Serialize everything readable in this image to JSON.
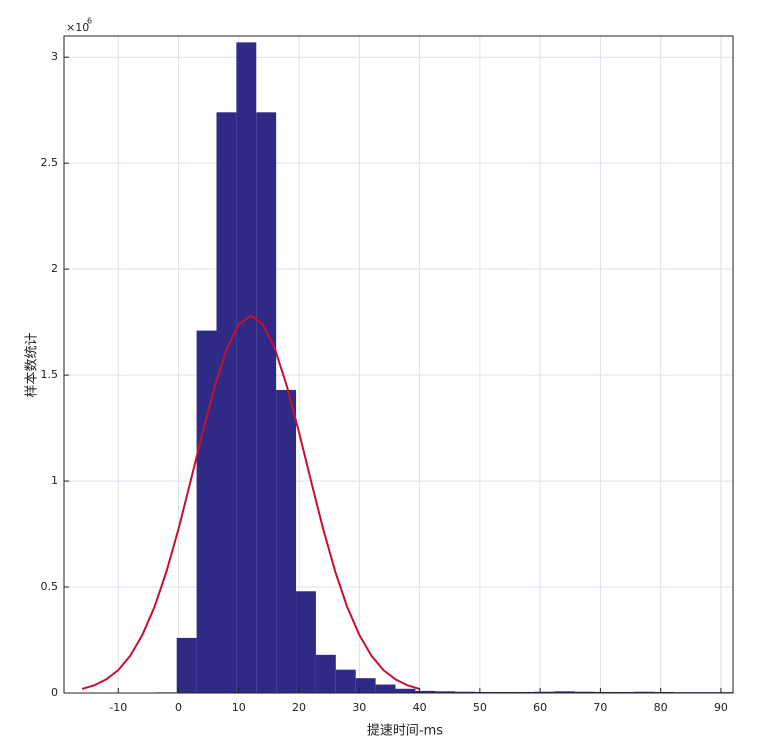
{
  "chart_data": {
    "type": "histogram",
    "xlabel": "提速时间-ms",
    "ylabel": "样本数统计",
    "y_scale_base": "×10",
    "y_scale_exponent": "6",
    "bins": [
      -3.6,
      -0.3,
      3.0,
      6.3,
      9.6,
      12.9,
      16.2,
      19.5,
      22.8,
      26.1,
      29.4,
      32.7,
      36.0,
      39.3,
      42.6,
      45.9,
      49.2,
      52.5,
      55.8,
      59.1,
      62.4,
      65.7,
      69.0,
      72.3,
      75.6,
      78.9,
      82.2,
      85.5,
      88.8,
      92.1
    ],
    "values": [
      0.003,
      0.26,
      1.71,
      2.74,
      3.07,
      2.74,
      1.43,
      0.48,
      0.18,
      0.11,
      0.07,
      0.04,
      0.02,
      0.01,
      0.008,
      0.006,
      0.005,
      0.005,
      0.005,
      0.006,
      0.008,
      0.006,
      0.005,
      0.005,
      0.006,
      0.005,
      0.004,
      0.004,
      0.004
    ],
    "color": "#2e2a85",
    "curve": {
      "color": "#c8102e",
      "x": [
        -16,
        -14,
        -12,
        -10,
        -8,
        -6,
        -4,
        -2,
        0,
        2,
        4,
        6,
        8,
        10,
        12,
        14,
        16,
        18,
        20,
        22,
        24,
        26,
        28,
        30,
        32,
        34,
        36,
        38,
        40
      ],
      "values": [
        0.019,
        0.036,
        0.064,
        0.108,
        0.176,
        0.274,
        0.405,
        0.573,
        0.774,
        0.999,
        1.229,
        1.446,
        1.623,
        1.739,
        1.78,
        1.739,
        1.623,
        1.446,
        1.229,
        0.999,
        0.774,
        0.573,
        0.405,
        0.274,
        0.176,
        0.108,
        0.064,
        0.036,
        0.019
      ]
    },
    "xlim": [
      -19,
      92
    ],
    "ylim": [
      0,
      3.1
    ],
    "xticks": [
      -10,
      0,
      10,
      20,
      30,
      40,
      50,
      60,
      70,
      80,
      90
    ],
    "yticks": [
      0,
      0.5,
      1,
      1.5,
      2,
      2.5,
      3
    ],
    "grid": true
  }
}
